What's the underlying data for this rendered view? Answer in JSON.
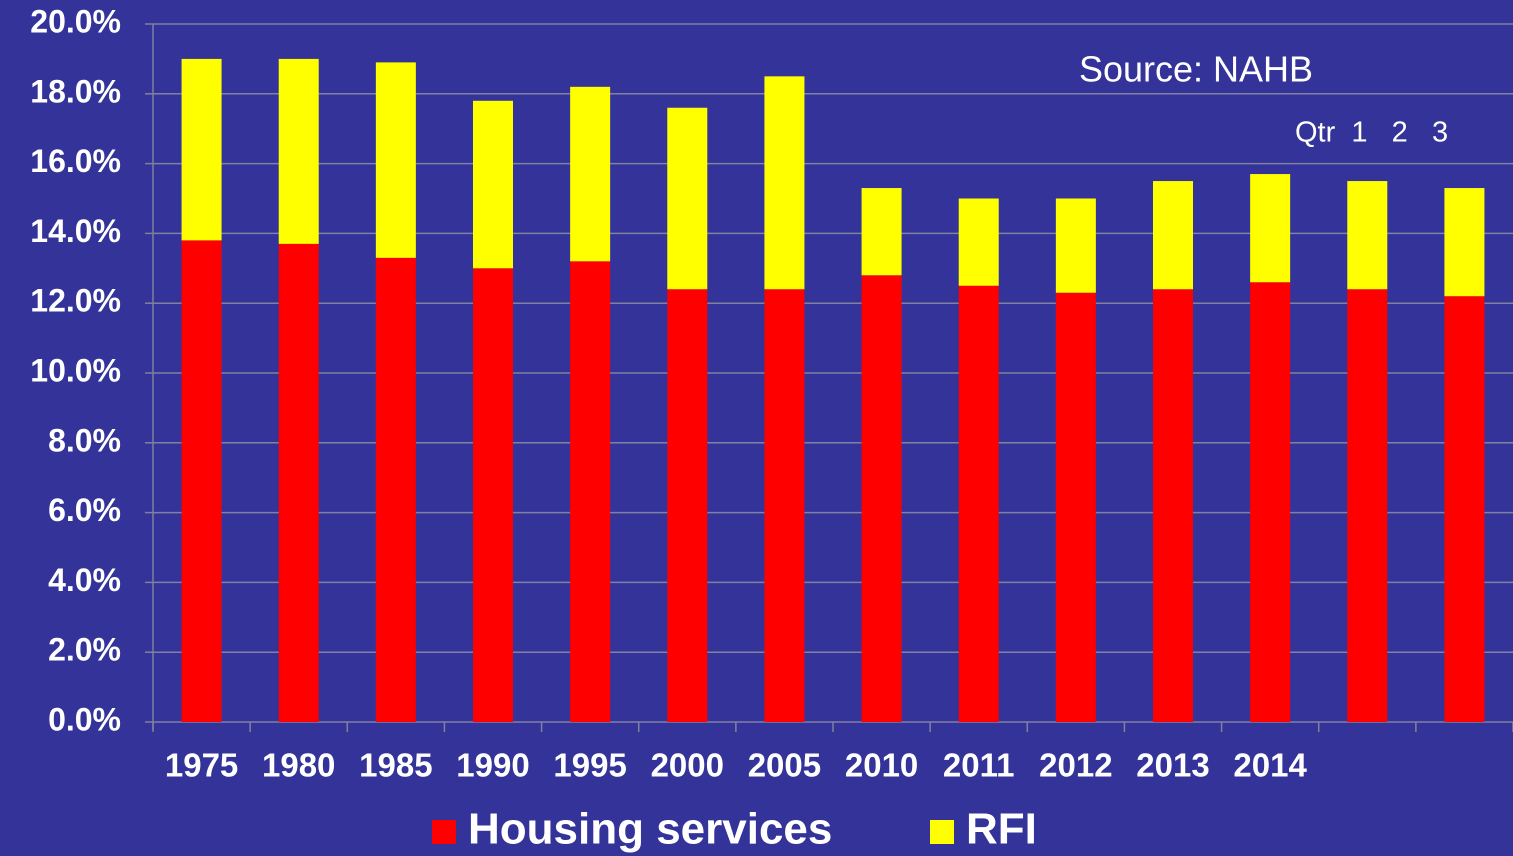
{
  "chart_data": {
    "type": "stacked_bar",
    "categories": [
      "1975",
      "1980",
      "1985",
      "1990",
      "1995",
      "2000",
      "2005",
      "2010",
      "2011",
      "2012",
      "2013",
      "2014",
      null,
      null
    ],
    "series": [
      {
        "name": "Housing services",
        "color": "#ff0000",
        "values": [
          13.8,
          13.7,
          13.3,
          13.0,
          13.2,
          12.4,
          12.4,
          12.8,
          12.5,
          12.3,
          12.4,
          12.6,
          12.4,
          12.2
        ]
      },
      {
        "name": "RFI",
        "color": "#ffff00",
        "values": [
          5.2,
          5.3,
          5.6,
          4.8,
          5.0,
          5.2,
          6.1,
          2.5,
          2.5,
          2.7,
          3.1,
          3.1,
          3.1,
          3.1
        ]
      }
    ],
    "ylim": [
      0,
      20
    ],
    "yticks": [
      {
        "value": 0,
        "label": "0.0%"
      },
      {
        "value": 2,
        "label": "2.0%"
      },
      {
        "value": 4,
        "label": "4.0%"
      },
      {
        "value": 6,
        "label": "6.0%"
      },
      {
        "value": 8,
        "label": "8.0%"
      },
      {
        "value": 10,
        "label": "10.0%"
      },
      {
        "value": 12,
        "label": "12.0%"
      },
      {
        "value": 14,
        "label": "14.0%"
      },
      {
        "value": 16,
        "label": "16.0%"
      },
      {
        "value": 18,
        "label": "18.0%"
      },
      {
        "value": 20,
        "label": "20.0%"
      }
    ],
    "grid": true,
    "annotations": [
      "Source: NAHB",
      "Qtr  1   2   3"
    ]
  }
}
